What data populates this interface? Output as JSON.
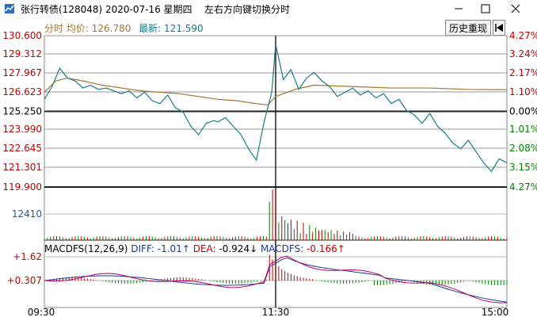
{
  "window": {
    "title": "张行转债(128048) 2020-07-16 星期四",
    "hint": "左右方向键切换分时",
    "minimize_icon": "minimize-icon",
    "maximize_icon": "maximize-icon",
    "close_icon": "close-icon"
  },
  "header": {
    "label_fenshi": "分时",
    "label_avg": "均价:",
    "avg_value": "126.780",
    "label_latest": "最新:",
    "latest_value": "121.590",
    "history_button": "历史重现",
    "back_icon": "step-back-icon"
  },
  "colors": {
    "price_line": "#1a7a8a",
    "avg_line": "#a07830",
    "up": "#c00000",
    "down": "#008000",
    "grid": "#888888"
  },
  "chart_data": {
    "type": "line",
    "price_axis": {
      "left_labels": [
        "130.600",
        "129.312",
        "127.967",
        "126.623",
        "125.250",
        "123.990",
        "122.645",
        "121.301",
        "119.900"
      ],
      "right_labels": [
        "4.27%",
        "3.24%",
        "2.17%",
        "1.10%",
        "0.00%",
        "1.01%",
        "2.08%",
        "3.15%",
        "4.27%"
      ],
      "prev_close": 125.25,
      "ylim": [
        119.9,
        130.6
      ]
    },
    "volume_axis": {
      "label": "12410"
    },
    "macd_axis": {
      "labels": [
        "+1.62",
        "+0.307"
      ]
    },
    "macd_legend": {
      "params": "MACDFS(12,26,9)",
      "diff_label": "DIFF: ",
      "diff_value": "-1.01",
      "dea_label": "DEA: ",
      "dea_value": "-0.924",
      "macd_label": "MACDFS: ",
      "macd_value": "-0.166"
    },
    "time_labels": [
      "09:30",
      "11:30",
      "15:00"
    ],
    "price_series": {
      "name": "最新",
      "x": [
        0,
        4,
        8,
        12,
        16,
        20,
        24,
        28,
        32,
        36,
        40,
        44,
        48,
        52,
        56,
        60,
        64,
        68,
        72,
        76,
        80,
        84,
        88,
        90,
        94,
        98,
        102,
        106,
        110,
        114,
        118,
        120,
        124,
        128,
        132,
        136,
        140,
        144,
        148,
        152,
        156,
        160,
        164,
        168,
        172,
        176,
        180,
        184,
        188,
        192,
        196,
        200,
        204,
        208,
        212,
        216,
        220,
        224,
        228,
        232,
        236,
        240
      ],
      "y": [
        126.1,
        127.0,
        128.3,
        127.6,
        127.4,
        126.9,
        127.1,
        126.8,
        126.9,
        126.7,
        126.5,
        126.7,
        126.2,
        126.6,
        126.0,
        125.8,
        126.4,
        125.5,
        125.2,
        124.2,
        123.6,
        124.4,
        124.6,
        124.5,
        124.8,
        124.2,
        123.6,
        122.6,
        121.8,
        124.5,
        126.6,
        130.0,
        127.5,
        128.2,
        126.8,
        127.6,
        128.0,
        127.4,
        127.0,
        126.3,
        126.6,
        126.9,
        126.4,
        126.7,
        126.2,
        126.5,
        125.8,
        126.1,
        125.3,
        125.0,
        124.4,
        125.1,
        124.2,
        123.7,
        123.0,
        122.6,
        123.2,
        122.4,
        121.6,
        121.0,
        121.9,
        121.6
      ]
    },
    "avg_series": {
      "name": "均价",
      "x": [
        0,
        6,
        12,
        20,
        30,
        40,
        50,
        60,
        70,
        80,
        90,
        100,
        110,
        116,
        120,
        130,
        140,
        160,
        180,
        200,
        220,
        240
      ],
      "y": [
        126.6,
        127.4,
        127.6,
        127.4,
        127.1,
        126.9,
        126.7,
        126.6,
        126.5,
        126.3,
        126.1,
        126.0,
        125.8,
        125.7,
        126.3,
        126.8,
        127.1,
        127.0,
        126.9,
        126.9,
        126.8,
        126.78
      ]
    }
  }
}
